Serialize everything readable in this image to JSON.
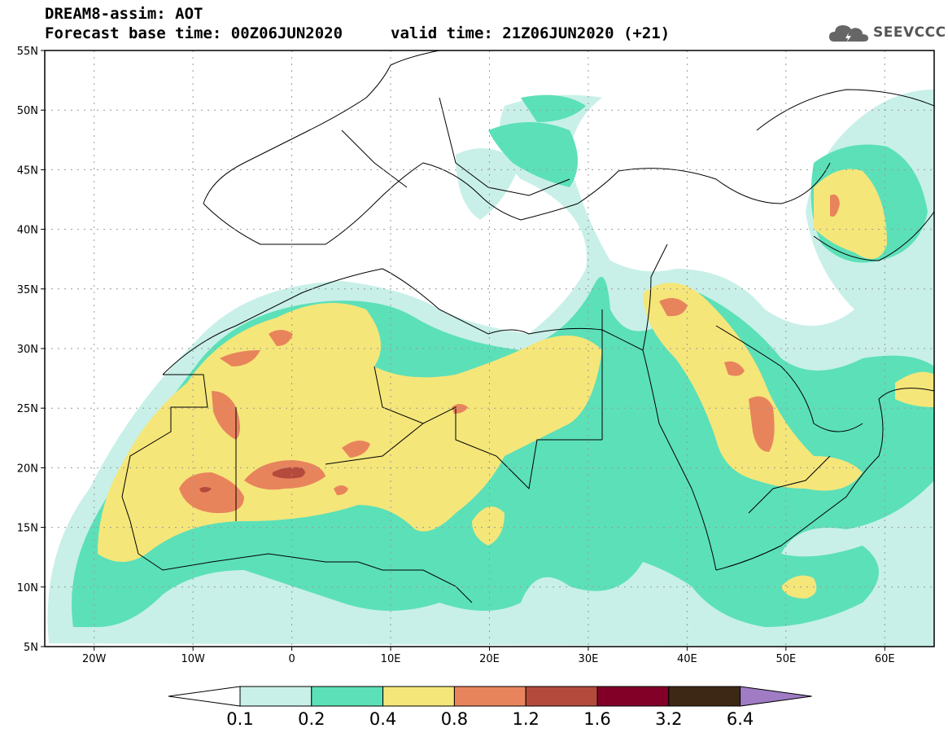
{
  "header": {
    "title_line1": "DREAM8-assim: AOT",
    "title_line2": "Forecast base time: 00Z06JUN2020",
    "valid_time": "valid time: 21Z06JUN2020 (+21)",
    "logo_text": "SEEVCCC"
  },
  "map": {
    "lat_labels": [
      "55N",
      "50N",
      "45N",
      "40N",
      "35N",
      "30N",
      "25N",
      "20N",
      "15N",
      "10N",
      "5N"
    ],
    "lon_labels": [
      "20W",
      "10W",
      "0",
      "10E",
      "20E",
      "30E",
      "40E",
      "50E",
      "60E"
    ],
    "lon_range": [
      -25,
      65
    ],
    "lat_range": [
      5,
      55
    ]
  },
  "colorbar": {
    "labels": [
      "0.1",
      "0.2",
      "0.4",
      "0.8",
      "1.2",
      "1.6",
      "3.2",
      "6.4"
    ],
    "colors": [
      "#c8f0e8",
      "#5ce0b8",
      "#f5e67a",
      "#e8845c",
      "#b44a3c",
      "#820028",
      "#3c2814",
      "#a07cc4"
    ]
  },
  "icons": {
    "logo": "cloud-icon"
  }
}
